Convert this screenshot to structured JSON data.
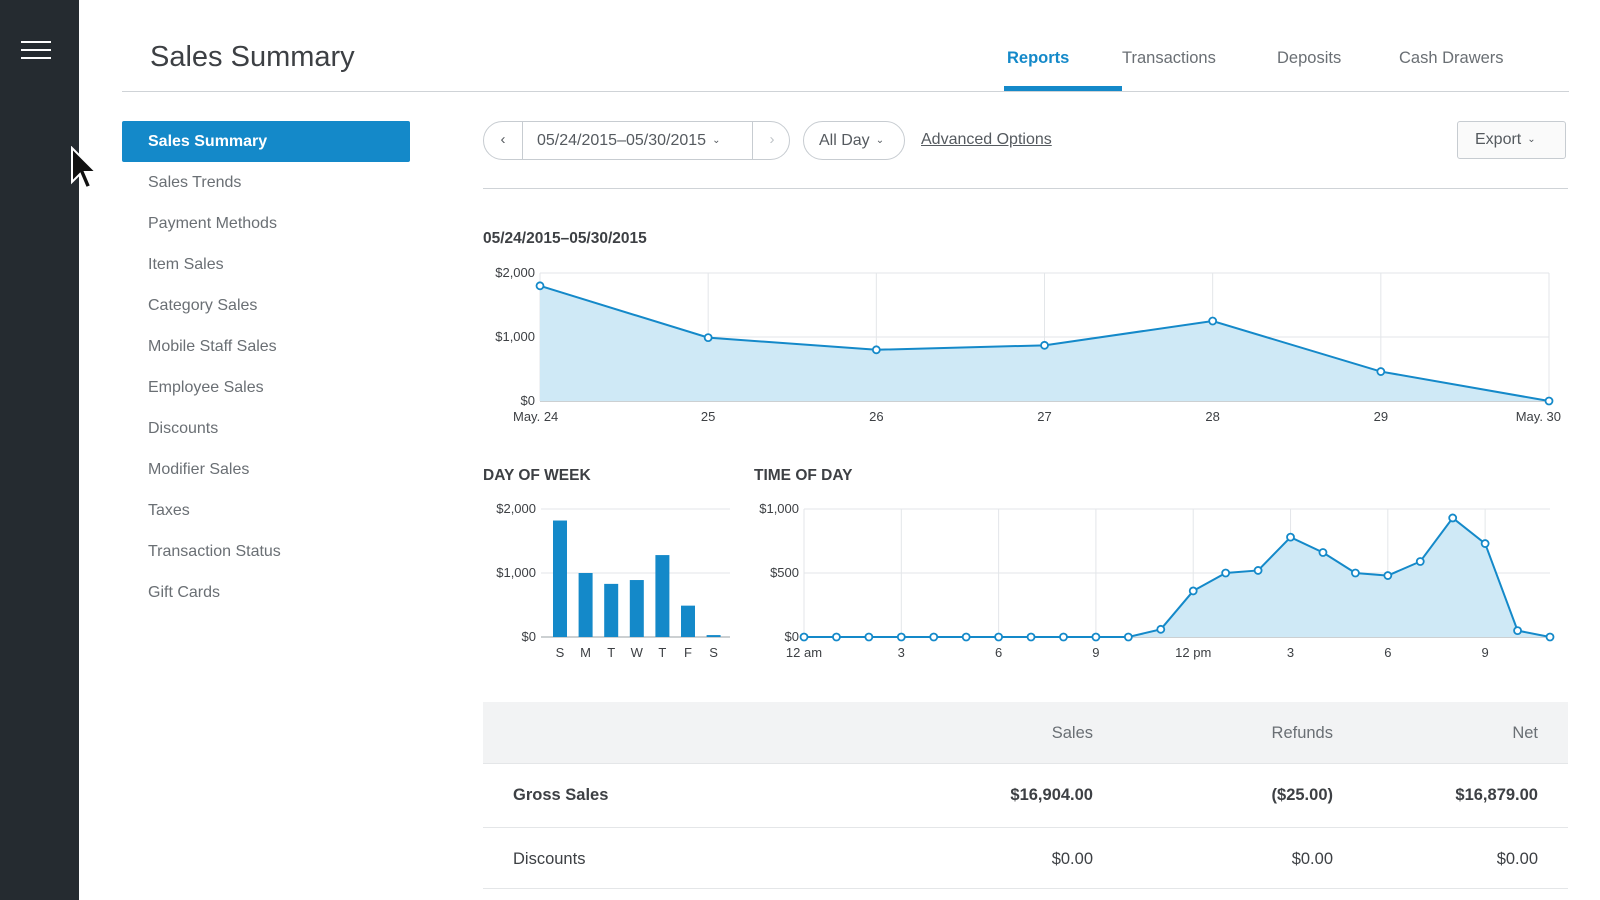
{
  "header": {
    "title": "Sales Summary",
    "tabs": [
      {
        "label": "Reports",
        "active": true
      },
      {
        "label": "Transactions",
        "active": false
      },
      {
        "label": "Deposits",
        "active": false
      },
      {
        "label": "Cash Drawers",
        "active": false
      }
    ]
  },
  "sidebar": {
    "items": [
      {
        "label": "Sales Summary",
        "active": true
      },
      {
        "label": "Sales Trends"
      },
      {
        "label": "Payment Methods"
      },
      {
        "label": "Item Sales"
      },
      {
        "label": "Category Sales"
      },
      {
        "label": "Mobile Staff Sales"
      },
      {
        "label": "Employee Sales"
      },
      {
        "label": "Discounts"
      },
      {
        "label": "Modifier Sales"
      },
      {
        "label": "Taxes"
      },
      {
        "label": "Transaction Status"
      },
      {
        "label": "Gift Cards"
      }
    ]
  },
  "filters": {
    "prev_icon": "chevron-left-icon",
    "next_icon": "chevron-right-icon",
    "date_range": "05/24/2015–05/30/2015",
    "time_range": "All Day",
    "advanced_options": "Advanced Options",
    "export": "Export"
  },
  "colors": {
    "accent": "#1489c9",
    "area_fill": "#cfe9f6",
    "rail": "#252b30"
  },
  "chart_data": [
    {
      "type": "area",
      "title": "05/24/2015–05/30/2015",
      "x": [
        "May. 24",
        "25",
        "26",
        "27",
        "28",
        "29",
        "May. 30"
      ],
      "values": [
        1800,
        990,
        800,
        870,
        1250,
        460,
        0
      ],
      "y_ticks": [
        "$0",
        "$1,000",
        "$2,000"
      ],
      "ylim": [
        0,
        2000
      ],
      "grid": true
    },
    {
      "type": "bar",
      "title": "DAY OF WEEK",
      "categories": [
        "S",
        "M",
        "T",
        "W",
        "T",
        "F",
        "S"
      ],
      "values": [
        1820,
        1000,
        830,
        890,
        1280,
        490,
        30
      ],
      "y_ticks": [
        "$0",
        "$1,000",
        "$2,000"
      ],
      "ylim": [
        0,
        2000
      ],
      "grid": true
    },
    {
      "type": "area",
      "title": "TIME OF DAY",
      "hours": [
        0,
        1,
        2,
        3,
        4,
        5,
        6,
        7,
        8,
        9,
        10,
        11,
        12,
        13,
        14,
        15,
        16,
        17,
        18,
        19,
        20,
        21,
        22,
        23
      ],
      "values": [
        0,
        0,
        0,
        0,
        0,
        0,
        0,
        0,
        0,
        0,
        0,
        60,
        360,
        500,
        520,
        780,
        660,
        500,
        480,
        590,
        930,
        730,
        50,
        0
      ],
      "x_tick_labels": [
        {
          "hour": 0,
          "label": "12 am"
        },
        {
          "hour": 3,
          "label": "3"
        },
        {
          "hour": 6,
          "label": "6"
        },
        {
          "hour": 9,
          "label": "9"
        },
        {
          "hour": 12,
          "label": "12 pm"
        },
        {
          "hour": 15,
          "label": "3"
        },
        {
          "hour": 18,
          "label": "6"
        },
        {
          "hour": 21,
          "label": "9"
        }
      ],
      "y_ticks": [
        "$0",
        "$500",
        "$1,000"
      ],
      "ylim": [
        0,
        1000
      ],
      "grid": true
    }
  ],
  "summary_table": {
    "columns": [
      "",
      "Sales",
      "Refunds",
      "Net"
    ],
    "rows": [
      {
        "label": "Gross Sales",
        "sales": "$16,904.00",
        "refunds": "($25.00)",
        "net": "$16,879.00"
      },
      {
        "label": "Discounts",
        "sales": "$0.00",
        "refunds": "$0.00",
        "net": "$0.00"
      }
    ]
  }
}
